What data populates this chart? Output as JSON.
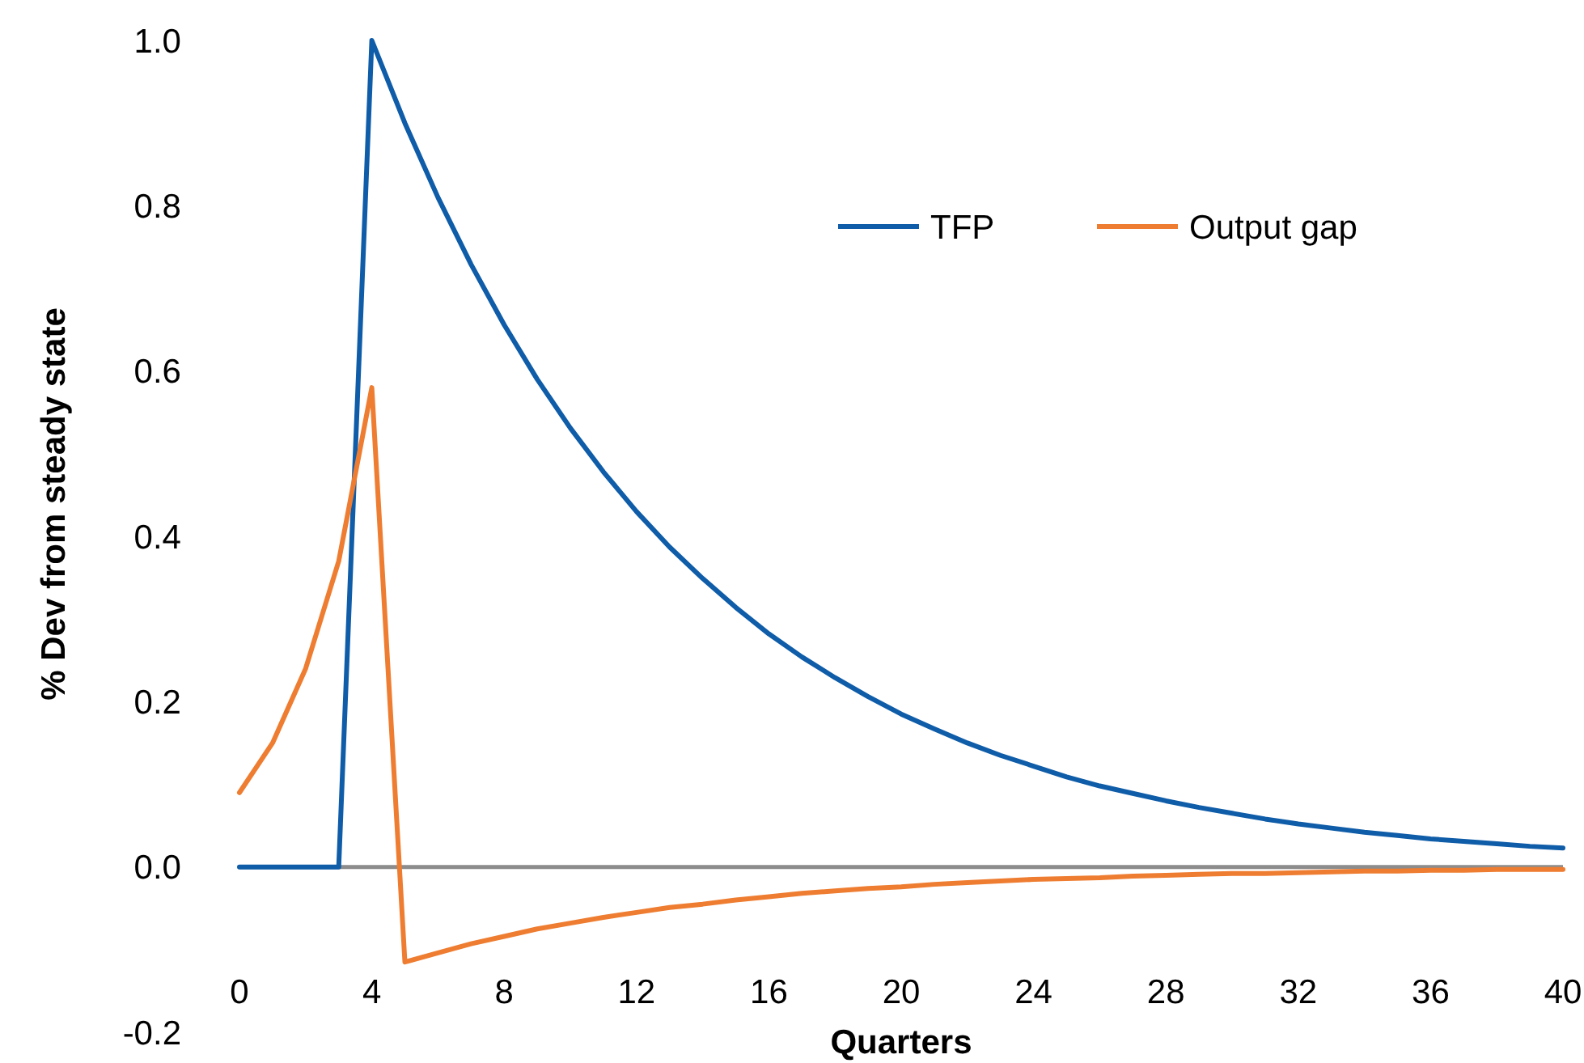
{
  "chart_data": {
    "type": "line",
    "xlabel": "Quarters",
    "ylabel": "% Dev from steady state",
    "x": [
      0,
      1,
      2,
      3,
      4,
      5,
      6,
      7,
      8,
      9,
      10,
      11,
      12,
      13,
      14,
      15,
      16,
      17,
      18,
      19,
      20,
      21,
      22,
      23,
      24,
      25,
      26,
      27,
      28,
      29,
      30,
      31,
      32,
      33,
      34,
      35,
      36,
      37,
      38,
      39,
      40
    ],
    "series": [
      {
        "name": "TFP",
        "color": "#0f5ca8",
        "values": [
          0,
          0,
          0,
          0,
          1.0,
          0.9,
          0.81,
          0.729,
          0.656,
          0.59,
          0.531,
          0.478,
          0.43,
          0.387,
          0.349,
          0.314,
          0.282,
          0.254,
          0.229,
          0.206,
          0.185,
          0.167,
          0.15,
          0.135,
          0.122,
          0.109,
          0.098,
          0.089,
          0.08,
          0.072,
          0.065,
          0.058,
          0.052,
          0.047,
          0.042,
          0.038,
          0.034,
          0.031,
          0.028,
          0.025,
          0.023
        ]
      },
      {
        "name": "Output gap",
        "color": "#ee7d31",
        "values": [
          0.09,
          0.15,
          0.24,
          0.37,
          0.58,
          -0.115,
          -0.104,
          -0.093,
          -0.084,
          -0.075,
          -0.068,
          -0.061,
          -0.055,
          -0.049,
          -0.045,
          -0.04,
          -0.036,
          -0.032,
          -0.029,
          -0.026,
          -0.024,
          -0.021,
          -0.019,
          -0.017,
          -0.015,
          -0.014,
          -0.013,
          -0.011,
          -0.01,
          -0.009,
          -0.008,
          -0.008,
          -0.007,
          -0.006,
          -0.005,
          -0.005,
          -0.004,
          -0.004,
          -0.003,
          -0.003,
          -0.003
        ]
      }
    ],
    "xlim": [
      0,
      40
    ],
    "xticks": [
      0,
      4,
      8,
      12,
      16,
      20,
      24,
      28,
      32,
      36,
      40
    ],
    "ylim": [
      -0.2,
      1.0
    ],
    "yticks": [
      {
        "value": -0.2,
        "label": "-0.2"
      },
      {
        "value": 0,
        "label": "0.0"
      },
      {
        "value": 0.2,
        "label": "0.2"
      },
      {
        "value": 0.4,
        "label": "0.4"
      },
      {
        "value": 0.6,
        "label": "0.6"
      },
      {
        "value": 0.8,
        "label": "0.8"
      },
      {
        "value": 1.0,
        "label": "1.0"
      }
    ],
    "legend": "top right",
    "marker": "none",
    "line_style": "solid"
  }
}
